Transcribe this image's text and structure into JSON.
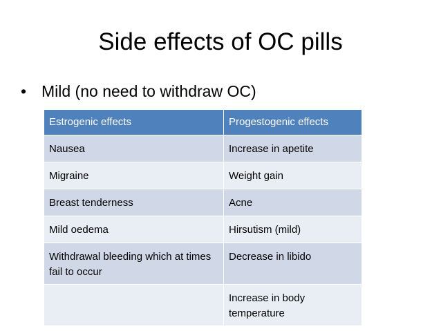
{
  "slide": {
    "title": "Side effects of OC pills",
    "bullet": "Mild (no need to withdraw OC)",
    "table": {
      "headers": [
        "Estrogenic effects",
        "Progestogenic effects"
      ],
      "rows": [
        [
          "Nausea",
          "Increase in apetite"
        ],
        [
          "Migraine",
          "Weight gain"
        ],
        [
          "Breast tenderness",
          "Acne"
        ],
        [
          "Mild oedema",
          "Hirsutism (mild)"
        ],
        [
          "Withdrawal bleeding which at times fail to occur",
          "Decrease in libido"
        ],
        [
          "",
          "Increase in body temperature"
        ]
      ]
    },
    "colors": {
      "header": "#4f81bd",
      "row_dark": "#d0d8e8",
      "row_light": "#e9edf4"
    }
  }
}
